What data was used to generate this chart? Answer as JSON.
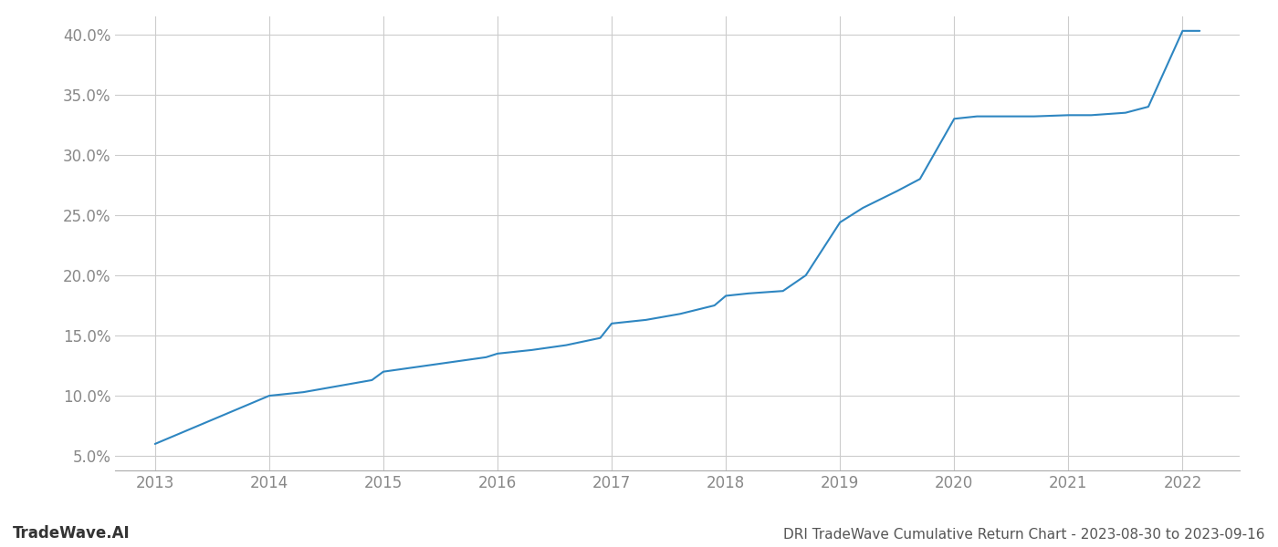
{
  "title": "DRI TradeWave Cumulative Return Chart - 2023-08-30 to 2023-09-16",
  "watermark": "TradeWave.AI",
  "line_color": "#2e86c1",
  "background_color": "#ffffff",
  "grid_color": "#cccccc",
  "years": [
    2013.0,
    2013.2,
    2013.5,
    2013.8,
    2014.0,
    2014.3,
    2014.6,
    2014.9,
    2015.0,
    2015.3,
    2015.6,
    2015.9,
    2016.0,
    2016.3,
    2016.6,
    2016.9,
    2017.0,
    2017.3,
    2017.6,
    2017.9,
    2018.0,
    2018.2,
    2018.5,
    2018.7,
    2019.0,
    2019.2,
    2019.5,
    2019.7,
    2020.0,
    2020.2,
    2020.5,
    2020.7,
    2021.0,
    2021.2,
    2021.5,
    2021.7,
    2022.0,
    2022.15
  ],
  "values": [
    0.06,
    0.068,
    0.08,
    0.092,
    0.1,
    0.103,
    0.108,
    0.113,
    0.12,
    0.124,
    0.128,
    0.132,
    0.135,
    0.138,
    0.142,
    0.148,
    0.16,
    0.163,
    0.168,
    0.175,
    0.183,
    0.185,
    0.187,
    0.2,
    0.244,
    0.256,
    0.27,
    0.28,
    0.33,
    0.332,
    0.332,
    0.332,
    0.333,
    0.333,
    0.335,
    0.34,
    0.403,
    0.403
  ],
  "xlim": [
    2012.65,
    2022.5
  ],
  "ylim": [
    0.038,
    0.415
  ],
  "yticks": [
    0.05,
    0.1,
    0.15,
    0.2,
    0.25,
    0.3,
    0.35,
    0.4
  ],
  "xticks": [
    2013,
    2014,
    2015,
    2016,
    2017,
    2018,
    2019,
    2020,
    2021,
    2022
  ],
  "tick_label_color": "#888888",
  "title_color": "#555555",
  "watermark_color": "#333333",
  "line_width": 1.5,
  "title_fontsize": 11,
  "tick_fontsize": 12,
  "watermark_fontsize": 12
}
